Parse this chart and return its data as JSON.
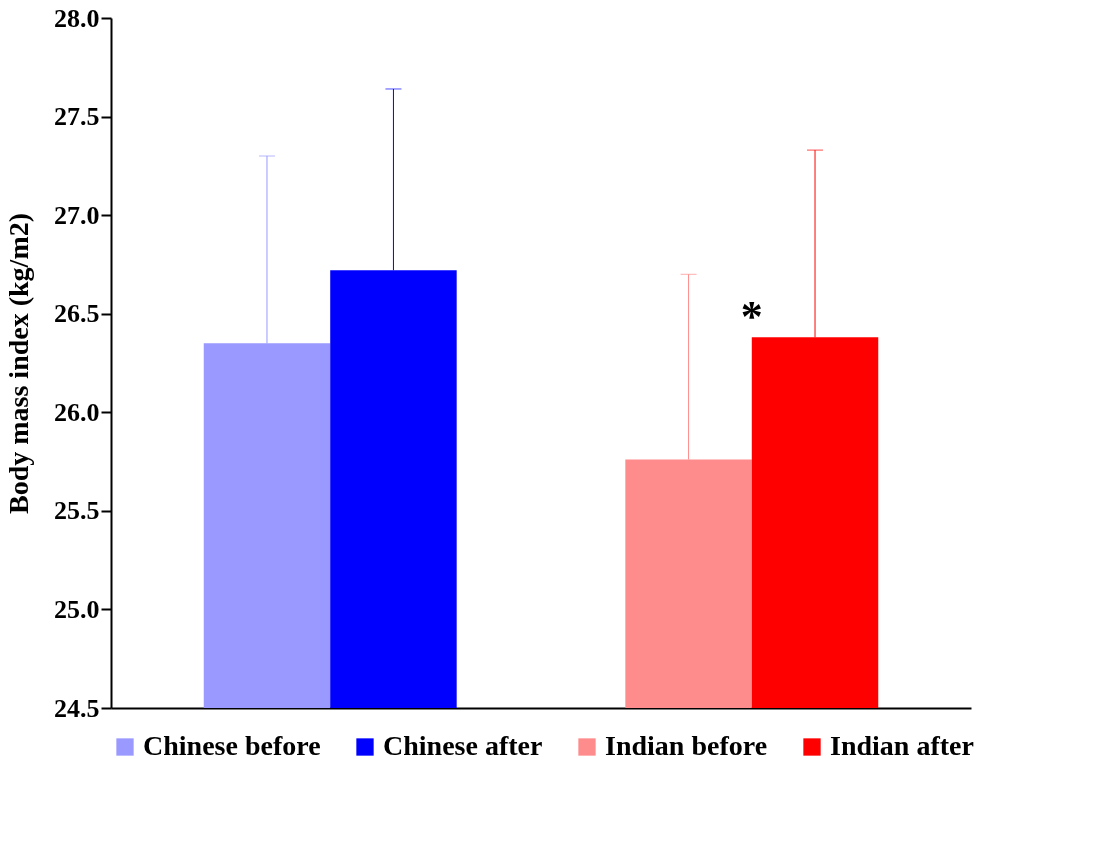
{
  "chart_data": {
    "type": "bar",
    "ylabel": "Body mass index (kg/m2)",
    "categories": [
      null,
      null
    ],
    "series": [
      {
        "name": "Chinese before",
        "color": "#9999ff",
        "values": [
          26.35,
          null
        ],
        "errors": [
          [
            26.35,
            27.3
          ],
          null
        ]
      },
      {
        "name": "Chinese after",
        "color": "#0000ff",
        "values": [
          26.72,
          null
        ],
        "errors": [
          [
            26.72,
            27.64
          ],
          null
        ]
      },
      {
        "name": "Indian before",
        "color": "#ff8c8c",
        "values": [
          null,
          25.76
        ],
        "errors": [
          null,
          [
            25.76,
            26.7
          ]
        ]
      },
      {
        "name": "Indian after",
        "color": "#ff0000",
        "values": [
          null,
          26.38
        ],
        "errors": [
          null,
          [
            26.38,
            27.33
          ]
        ]
      }
    ],
    "ylim": [
      24.5,
      28.0
    ],
    "yticks": [
      {
        "value": 24.5,
        "label": "24.5"
      },
      {
        "value": 25,
        "label": "25.0"
      },
      {
        "value": 25.5,
        "label": "25.5"
      },
      {
        "value": 26,
        "label": "26.0"
      },
      {
        "value": 26.5,
        "label": "26.5"
      },
      {
        "value": 27,
        "label": "27.0"
      },
      {
        "value": 27.5,
        "label": "27.5"
      },
      {
        "value": 28,
        "label": "28.0"
      }
    ],
    "annotations": [
      "*"
    ],
    "grid": false,
    "legend": "bottom",
    "tick_labels": "y"
  }
}
